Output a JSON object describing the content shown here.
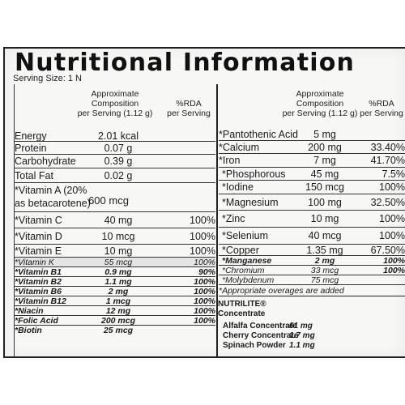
{
  "title": "Nutritional Information",
  "serving_size": "Serving Size: 1 N",
  "headers": {
    "left_amount": [
      "Approximate",
      "Composition",
      "per Serving (1.12 g)"
    ],
    "left_rda": [
      "%RDA",
      "per Serving"
    ],
    "right_amount": [
      "Approximate",
      "Composition",
      "per Serving (1.12 g)"
    ],
    "right_rda": [
      "%RDA",
      "per Serving"
    ]
  },
  "left_rows": [
    {
      "name": "Energy",
      "amount": "2.01 kcal",
      "rda": ""
    },
    {
      "name": "Protein",
      "amount": "0.07 g",
      "rda": ""
    },
    {
      "name": "Carbohydrate",
      "amount": "0.39 g",
      "rda": ""
    },
    {
      "name": "Total Fat",
      "amount": "0.02 g",
      "rda": ""
    },
    {
      "name": "*Vitamin A (20%",
      "name2": "as betacarotene)",
      "amount": "600 mcg",
      "rda": ""
    },
    {
      "name": "*Vitamin C",
      "amount": "40 mg",
      "rda": "100%"
    },
    {
      "name": "*Vitamin D",
      "amount": "10 mcg",
      "rda": "100%"
    },
    {
      "name": "*Vitamin E",
      "amount": "10 mg",
      "rda": "100%"
    },
    {
      "name": "*Vitamin K",
      "amount": "55 mcg",
      "rda": "100%"
    },
    {
      "name": "*Vitamin B1",
      "amount": "0.9 mg",
      "rda": "90%"
    },
    {
      "name": "*Vitamin B2",
      "amount": "1.1 mg",
      "rda": "100%"
    },
    {
      "name": "*Vitamin B6",
      "amount": "2 mg",
      "rda": "100%"
    },
    {
      "name": "*Vitamin B12",
      "amount": "1 mcg",
      "rda": "100%"
    },
    {
      "name": "*Niacin",
      "amount": "12 mg",
      "rda": "100%"
    },
    {
      "name": "*Folic Acid",
      "amount": "200 mcg",
      "rda": "100%"
    },
    {
      "name": "*Biotin",
      "amount": "25 mcg",
      "rda": ""
    }
  ],
  "right_rows": [
    {
      "name": "*Pantothenic Acid",
      "amount": "5 mg",
      "rda": ""
    },
    {
      "name": "*Calcium",
      "amount": "200 mg",
      "rda": "33.40%"
    },
    {
      "name": "*Iron",
      "amount": "7 mg",
      "rda": "41.70%"
    },
    {
      "name": "*Phosphorous",
      "amount": "45 mg",
      "rda": "7.5%"
    },
    {
      "name": "*Iodine",
      "amount": "150 mcg",
      "rda": "100%"
    },
    {
      "name": "*Magnesium",
      "amount": "100 mg",
      "rda": "32.50%"
    },
    {
      "name": "*Zinc",
      "amount": "10 mg",
      "rda": "100%"
    },
    {
      "name": "*Selenium",
      "amount": "40 mcg",
      "rda": "100%"
    },
    {
      "name": "*Copper",
      "amount": "1.35 mg",
      "rda": "67.50%"
    },
    {
      "name": "*Manganese",
      "amount": "2 mg",
      "rda": "100%"
    },
    {
      "name": "*Chromium",
      "amount": "33 mcg",
      "rda": "100%"
    },
    {
      "name": "*Molybdenum",
      "amount": "75 mcg",
      "rda": ""
    }
  ],
  "overages_note": "*Appropriate overages are added",
  "nutrilite": {
    "heading": "NUTRILITE®",
    "subheading": "Concentrate",
    "items": [
      {
        "name": "Alfalfa Concentrate",
        "amount": "61 mg"
      },
      {
        "name": "Cherry Concentrate",
        "amount": "1.7 mg"
      },
      {
        "name": "Spinach Powder",
        "amount": "1.1 mg"
      }
    ]
  }
}
